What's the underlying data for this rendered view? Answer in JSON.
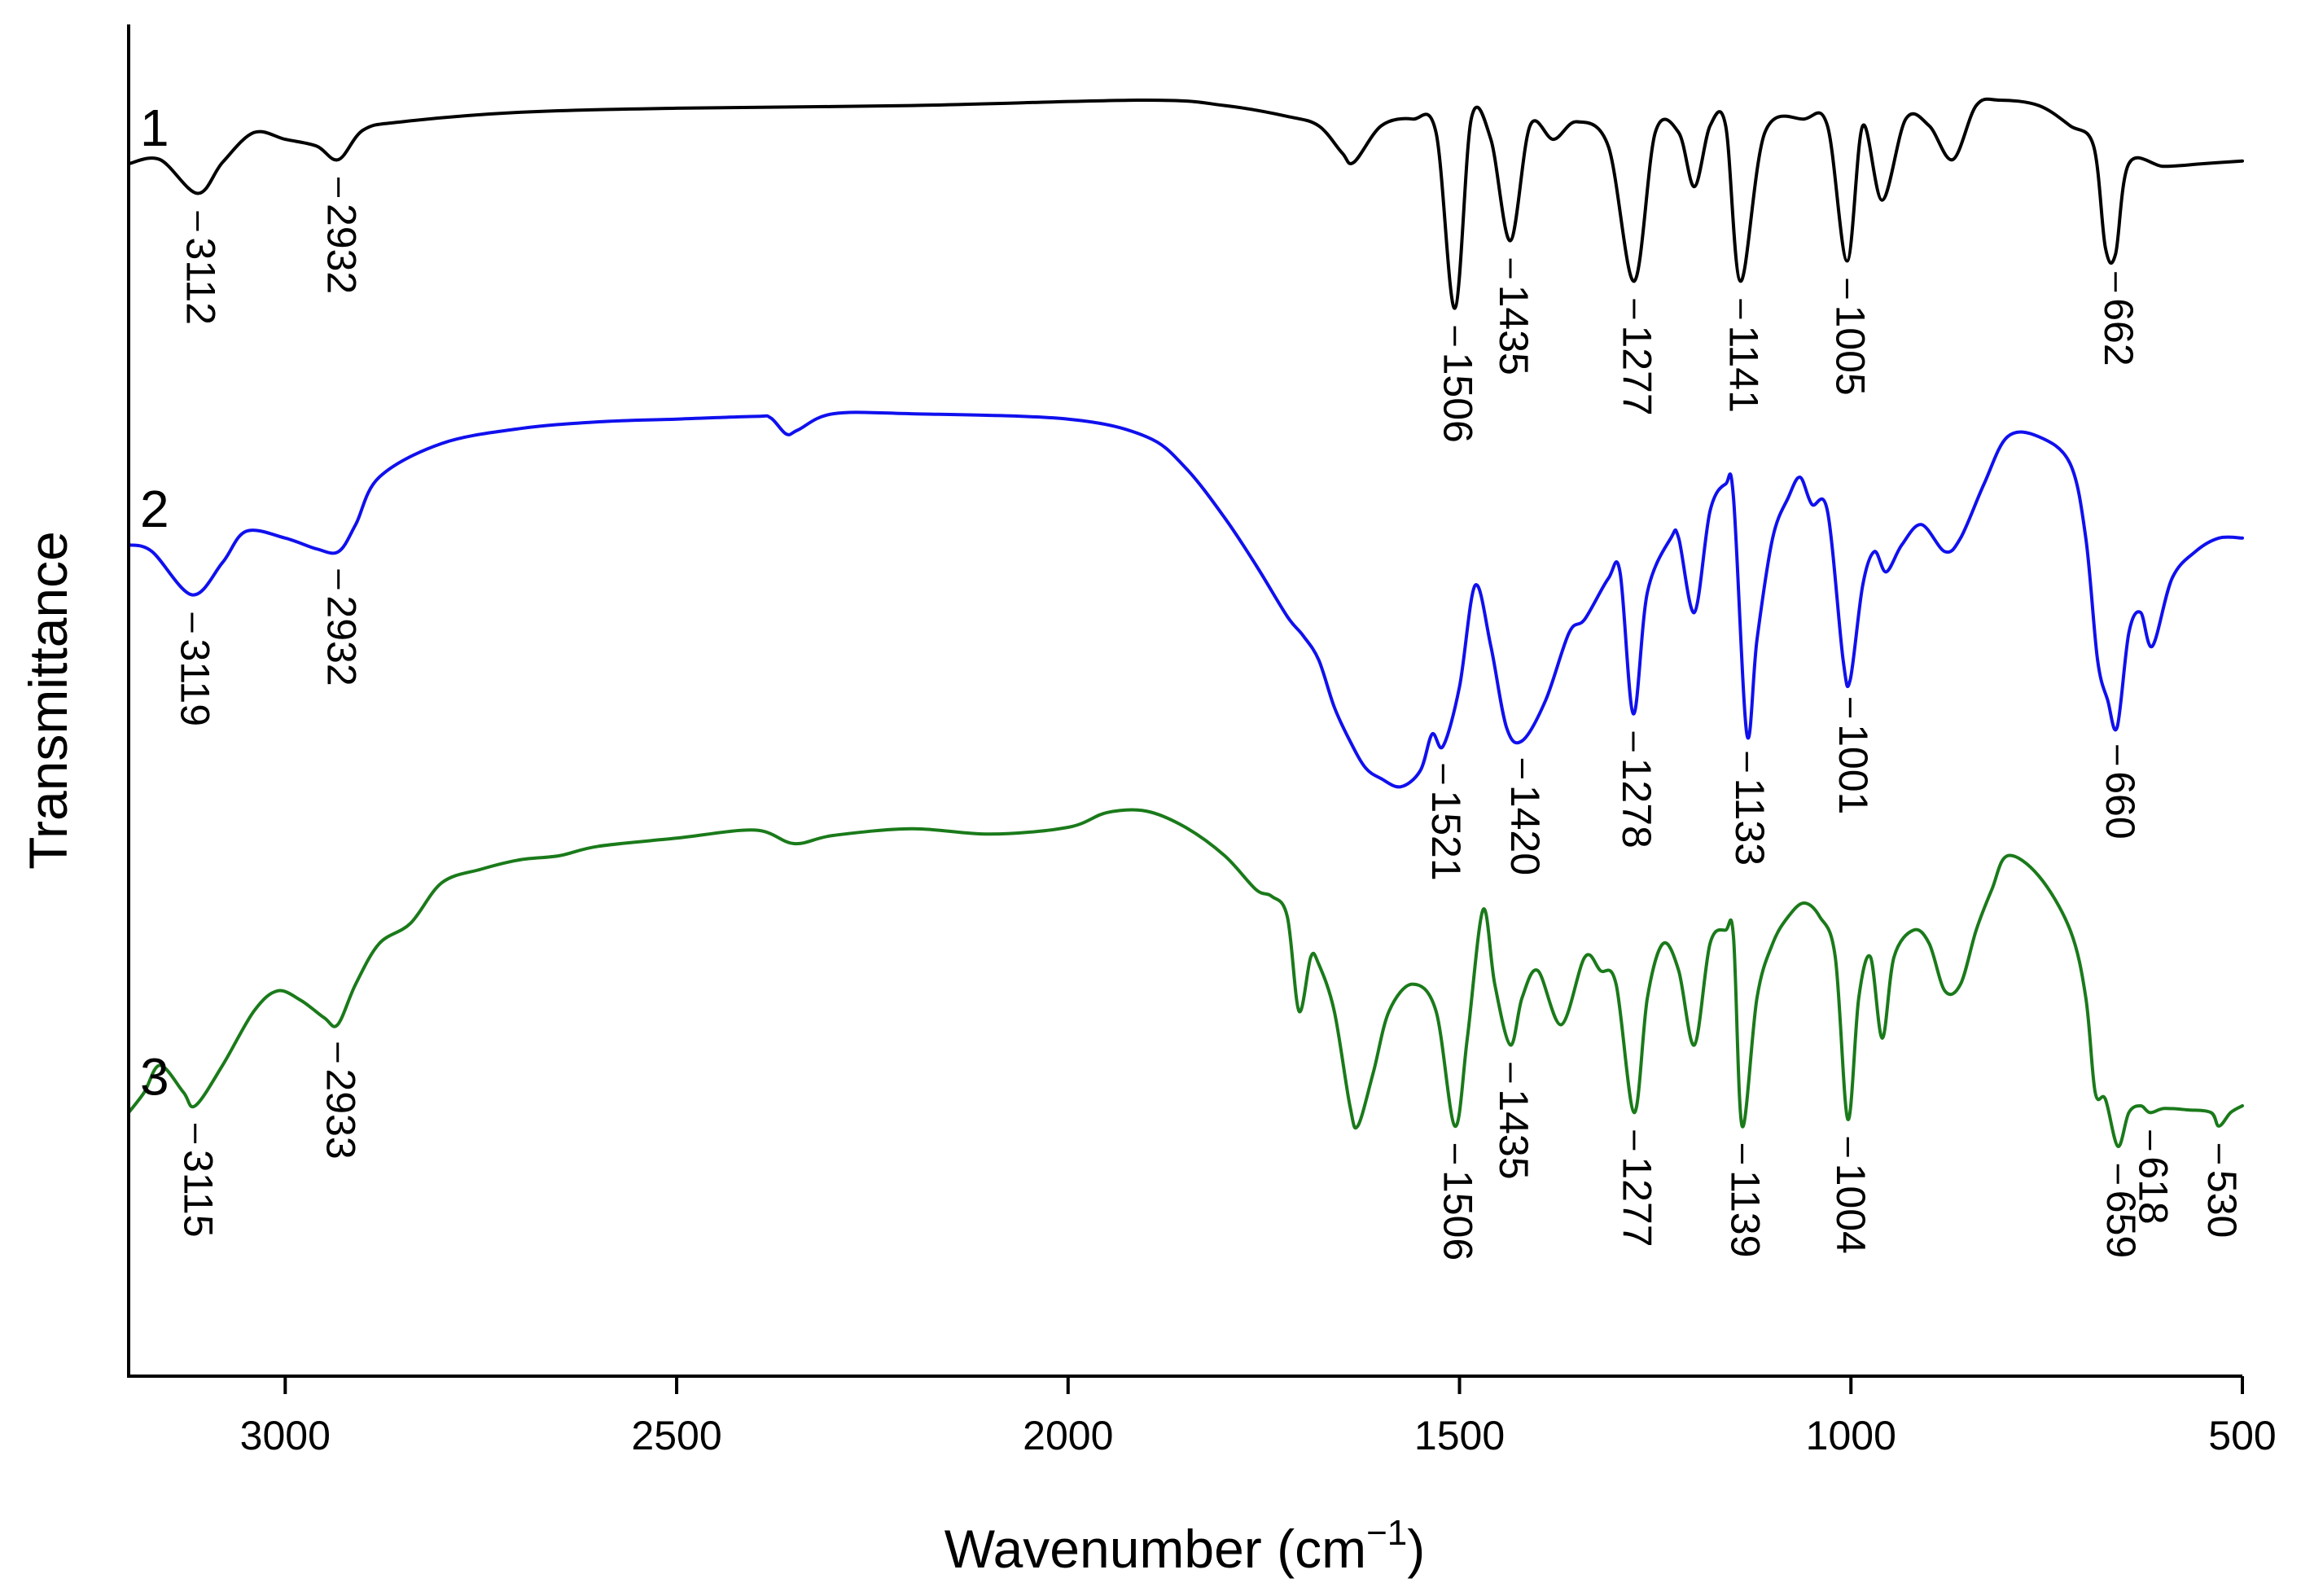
{
  "chart_data": {
    "type": "line",
    "title": "",
    "xlabel": "Wavenumber",
    "xlabel_unit_base": "cm",
    "xlabel_unit_exp": "−1",
    "ylabel": "Transmittance",
    "xlim": [
      3200,
      500
    ],
    "ylim": [
      0,
      1
    ],
    "x_ticks": [
      3000,
      2500,
      2000,
      1500,
      1000,
      500
    ],
    "x_tick_labels": [
      "3000",
      "2500",
      "2000",
      "1500",
      "1000",
      "500"
    ],
    "grid": false,
    "legend": "none",
    "series": [
      {
        "name": "1",
        "color": "#000000",
        "points": [
          [
            3200,
            0.897
          ],
          [
            3160,
            0.9
          ],
          [
            3112,
            0.875
          ],
          [
            3080,
            0.898
          ],
          [
            3040,
            0.92
          ],
          [
            3000,
            0.915
          ],
          [
            2960,
            0.91
          ],
          [
            2932,
            0.9
          ],
          [
            2900,
            0.922
          ],
          [
            2850,
            0.928
          ],
          [
            2700,
            0.935
          ],
          [
            2500,
            0.938
          ],
          [
            2200,
            0.94
          ],
          [
            1900,
            0.944
          ],
          [
            1800,
            0.94
          ],
          [
            1720,
            0.932
          ],
          [
            1680,
            0.925
          ],
          [
            1650,
            0.905
          ],
          [
            1635,
            0.898
          ],
          [
            1600,
            0.925
          ],
          [
            1560,
            0.93
          ],
          [
            1530,
            0.92
          ],
          [
            1506,
            0.79
          ],
          [
            1485,
            0.93
          ],
          [
            1460,
            0.915
          ],
          [
            1435,
            0.84
          ],
          [
            1410,
            0.925
          ],
          [
            1380,
            0.915
          ],
          [
            1350,
            0.928
          ],
          [
            1310,
            0.91
          ],
          [
            1277,
            0.81
          ],
          [
            1250,
            0.92
          ],
          [
            1220,
            0.92
          ],
          [
            1200,
            0.88
          ],
          [
            1180,
            0.925
          ],
          [
            1160,
            0.925
          ],
          [
            1141,
            0.81
          ],
          [
            1110,
            0.92
          ],
          [
            1060,
            0.93
          ],
          [
            1030,
            0.925
          ],
          [
            1005,
            0.825
          ],
          [
            985,
            0.925
          ],
          [
            960,
            0.87
          ],
          [
            930,
            0.93
          ],
          [
            900,
            0.925
          ],
          [
            870,
            0.9
          ],
          [
            840,
            0.94
          ],
          [
            810,
            0.944
          ],
          [
            760,
            0.94
          ],
          [
            720,
            0.925
          ],
          [
            690,
            0.91
          ],
          [
            675,
            0.835
          ],
          [
            662,
            0.83
          ],
          [
            645,
            0.897
          ],
          [
            600,
            0.895
          ],
          [
            550,
            0.897
          ],
          [
            500,
            0.899
          ]
        ],
        "peaks": [
          {
            "x": 3112,
            "label": "3112"
          },
          {
            "x": 2932,
            "label": "2932"
          },
          {
            "x": 1506,
            "label": "1506"
          },
          {
            "x": 1435,
            "label": "1435"
          },
          {
            "x": 1277,
            "label": "1277"
          },
          {
            "x": 1141,
            "label": "1141"
          },
          {
            "x": 1005,
            "label": "1005"
          },
          {
            "x": 662,
            "label": "662"
          }
        ]
      },
      {
        "name": "2",
        "color": "#1010ee",
        "points": [
          [
            3200,
            0.615
          ],
          [
            3170,
            0.61
          ],
          [
            3119,
            0.578
          ],
          [
            3080,
            0.602
          ],
          [
            3050,
            0.625
          ],
          [
            3000,
            0.62
          ],
          [
            2960,
            0.612
          ],
          [
            2932,
            0.61
          ],
          [
            2910,
            0.63
          ],
          [
            2880,
            0.665
          ],
          [
            2800,
            0.69
          ],
          [
            2700,
            0.701
          ],
          [
            2600,
            0.706
          ],
          [
            2500,
            0.708
          ],
          [
            2400,
            0.71
          ],
          [
            2380,
            0.709
          ],
          [
            2360,
            0.697
          ],
          [
            2345,
            0.7
          ],
          [
            2300,
            0.712
          ],
          [
            2200,
            0.712
          ],
          [
            2000,
            0.708
          ],
          [
            1900,
            0.695
          ],
          [
            1850,
            0.672
          ],
          [
            1800,
            0.635
          ],
          [
            1760,
            0.6
          ],
          [
            1720,
            0.562
          ],
          [
            1700,
            0.548
          ],
          [
            1680,
            0.53
          ],
          [
            1660,
            0.495
          ],
          [
            1640,
            0.47
          ],
          [
            1620,
            0.45
          ],
          [
            1600,
            0.442
          ],
          [
            1575,
            0.436
          ],
          [
            1550,
            0.448
          ],
          [
            1535,
            0.475
          ],
          [
            1521,
            0.466
          ],
          [
            1500,
            0.51
          ],
          [
            1480,
            0.585
          ],
          [
            1460,
            0.54
          ],
          [
            1440,
            0.48
          ],
          [
            1420,
            0.47
          ],
          [
            1390,
            0.5
          ],
          [
            1360,
            0.55
          ],
          [
            1340,
            0.56
          ],
          [
            1310,
            0.59
          ],
          [
            1295,
            0.595
          ],
          [
            1278,
            0.49
          ],
          [
            1260,
            0.58
          ],
          [
            1230,
            0.62
          ],
          [
            1220,
            0.62
          ],
          [
            1200,
            0.565
          ],
          [
            1180,
            0.64
          ],
          [
            1160,
            0.66
          ],
          [
            1150,
            0.65
          ],
          [
            1133,
            0.475
          ],
          [
            1120,
            0.545
          ],
          [
            1100,
            0.62
          ],
          [
            1080,
            0.65
          ],
          [
            1065,
            0.665
          ],
          [
            1050,
            0.645
          ],
          [
            1030,
            0.64
          ],
          [
            1010,
            0.53
          ],
          [
            1001,
            0.515
          ],
          [
            985,
            0.585
          ],
          [
            970,
            0.61
          ],
          [
            955,
            0.595
          ],
          [
            935,
            0.615
          ],
          [
            910,
            0.63
          ],
          [
            880,
            0.61
          ],
          [
            860,
            0.62
          ],
          [
            830,
            0.66
          ],
          [
            800,
            0.695
          ],
          [
            760,
            0.695
          ],
          [
            720,
            0.675
          ],
          [
            700,
            0.62
          ],
          [
            685,
            0.53
          ],
          [
            672,
            0.5
          ],
          [
            660,
            0.48
          ],
          [
            645,
            0.55
          ],
          [
            630,
            0.565
          ],
          [
            615,
            0.54
          ],
          [
            590,
            0.59
          ],
          [
            560,
            0.61
          ],
          [
            530,
            0.62
          ],
          [
            500,
            0.62
          ]
        ],
        "peaks": [
          {
            "x": 3119,
            "label": "3119"
          },
          {
            "x": 2932,
            "label": "2932"
          },
          {
            "x": 1521,
            "label": "1521"
          },
          {
            "x": 1420,
            "label": "1420"
          },
          {
            "x": 1278,
            "label": "1278"
          },
          {
            "x": 1133,
            "label": "1133"
          },
          {
            "x": 1001,
            "label": "1001"
          },
          {
            "x": 660,
            "label": "660"
          }
        ]
      },
      {
        "name": "3",
        "color": "#1a7a1a",
        "points": [
          [
            3200,
            0.195
          ],
          [
            3180,
            0.21
          ],
          [
            3160,
            0.23
          ],
          [
            3130,
            0.21
          ],
          [
            3115,
            0.2
          ],
          [
            3080,
            0.23
          ],
          [
            3040,
            0.27
          ],
          [
            3010,
            0.285
          ],
          [
            2980,
            0.278
          ],
          [
            2950,
            0.265
          ],
          [
            2933,
            0.26
          ],
          [
            2910,
            0.29
          ],
          [
            2880,
            0.32
          ],
          [
            2840,
            0.335
          ],
          [
            2800,
            0.365
          ],
          [
            2750,
            0.375
          ],
          [
            2700,
            0.382
          ],
          [
            2650,
            0.385
          ],
          [
            2600,
            0.392
          ],
          [
            2500,
            0.398
          ],
          [
            2400,
            0.404
          ],
          [
            2350,
            0.394
          ],
          [
            2300,
            0.4
          ],
          [
            2200,
            0.405
          ],
          [
            2100,
            0.401
          ],
          [
            2000,
            0.406
          ],
          [
            1950,
            0.417
          ],
          [
            1900,
            0.418
          ],
          [
            1850,
            0.406
          ],
          [
            1800,
            0.385
          ],
          [
            1760,
            0.36
          ],
          [
            1740,
            0.355
          ],
          [
            1720,
            0.34
          ],
          [
            1705,
            0.27
          ],
          [
            1690,
            0.31
          ],
          [
            1680,
            0.305
          ],
          [
            1660,
            0.27
          ],
          [
            1640,
            0.2
          ],
          [
            1630,
            0.185
          ],
          [
            1610,
            0.225
          ],
          [
            1590,
            0.27
          ],
          [
            1560,
            0.29
          ],
          [
            1530,
            0.27
          ],
          [
            1506,
            0.185
          ],
          [
            1490,
            0.25
          ],
          [
            1470,
            0.345
          ],
          [
            1455,
            0.29
          ],
          [
            1435,
            0.245
          ],
          [
            1420,
            0.28
          ],
          [
            1400,
            0.3
          ],
          [
            1370,
            0.26
          ],
          [
            1340,
            0.31
          ],
          [
            1320,
            0.3
          ],
          [
            1300,
            0.29
          ],
          [
            1277,
            0.195
          ],
          [
            1260,
            0.28
          ],
          [
            1240,
            0.32
          ],
          [
            1220,
            0.3
          ],
          [
            1200,
            0.245
          ],
          [
            1180,
            0.32
          ],
          [
            1160,
            0.33
          ],
          [
            1150,
            0.325
          ],
          [
            1139,
            0.185
          ],
          [
            1120,
            0.28
          ],
          [
            1100,
            0.32
          ],
          [
            1080,
            0.34
          ],
          [
            1060,
            0.35
          ],
          [
            1040,
            0.34
          ],
          [
            1020,
            0.31
          ],
          [
            1004,
            0.19
          ],
          [
            990,
            0.28
          ],
          [
            975,
            0.31
          ],
          [
            960,
            0.25
          ],
          [
            945,
            0.31
          ],
          [
            920,
            0.33
          ],
          [
            900,
            0.32
          ],
          [
            880,
            0.285
          ],
          [
            860,
            0.29
          ],
          [
            840,
            0.33
          ],
          [
            820,
            0.36
          ],
          [
            800,
            0.385
          ],
          [
            760,
            0.37
          ],
          [
            720,
            0.33
          ],
          [
            700,
            0.28
          ],
          [
            688,
            0.21
          ],
          [
            675,
            0.205
          ],
          [
            659,
            0.17
          ],
          [
            645,
            0.195
          ],
          [
            630,
            0.2
          ],
          [
            618,
            0.195
          ],
          [
            600,
            0.198
          ],
          [
            570,
            0.197
          ],
          [
            540,
            0.195
          ],
          [
            530,
            0.185
          ],
          [
            515,
            0.195
          ],
          [
            500,
            0.2
          ]
        ],
        "peaks": [
          {
            "x": 3115,
            "label": "3115"
          },
          {
            "x": 2933,
            "label": "2933"
          },
          {
            "x": 1506,
            "label": "1506"
          },
          {
            "x": 1435,
            "label": "1435"
          },
          {
            "x": 1277,
            "label": "1277"
          },
          {
            "x": 1139,
            "label": "1139"
          },
          {
            "x": 1004,
            "label": "1004"
          },
          {
            "x": 659,
            "label": "659"
          },
          {
            "x": 618,
            "label": "618"
          },
          {
            "x": 530,
            "label": "530"
          }
        ]
      }
    ]
  }
}
